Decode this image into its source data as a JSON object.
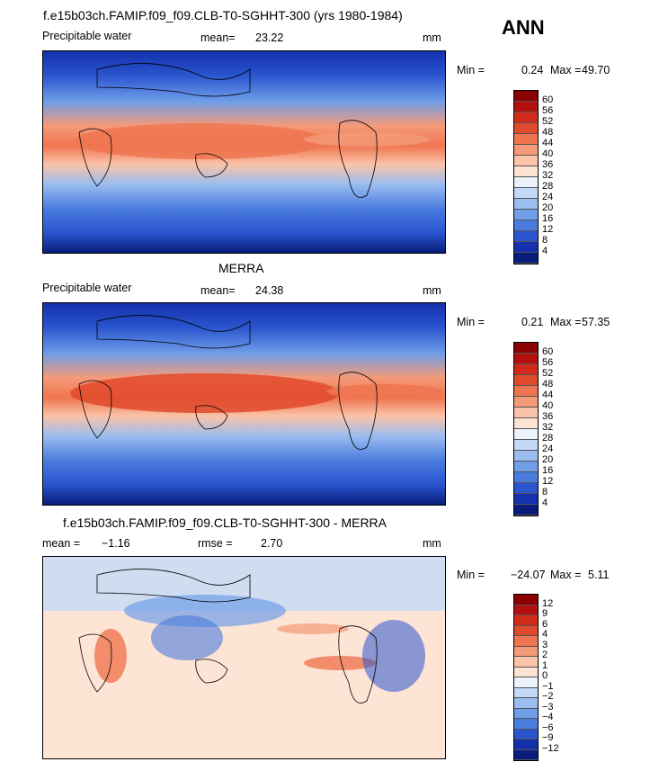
{
  "season": "ANN",
  "panels": [
    {
      "title": "f.e15b03ch.FAMIP.f09_f09.CLB-T0-SGHHT-300 (yrs 1980-1984)",
      "left_label": "Precipitable water",
      "stat_label": "mean=",
      "stat_value": "23.22",
      "units": "mm",
      "min_label": "Min =",
      "min_value": "0.24",
      "max_label": "Max =",
      "max_value": "49.70",
      "colorbar_ticks": [
        "60",
        "56",
        "52",
        "48",
        "44",
        "40",
        "36",
        "32",
        "28",
        "24",
        "20",
        "16",
        "12",
        "8",
        "4"
      ]
    },
    {
      "title": "MERRA",
      "left_label": "Precipitable water",
      "stat_label": "mean=",
      "stat_value": "24.38",
      "units": "mm",
      "min_label": "Min =",
      "min_value": "0.21",
      "max_label": "Max =",
      "max_value": "57.35",
      "colorbar_ticks": [
        "60",
        "56",
        "52",
        "48",
        "44",
        "40",
        "36",
        "32",
        "28",
        "24",
        "20",
        "16",
        "12",
        "8",
        "4"
      ]
    },
    {
      "title": "f.e15b03ch.FAMIP.f09_f09.CLB-T0-SGHHT-300 - MERRA",
      "left_label": "mean =",
      "stat_value_left": "−1.16",
      "stat_label": "rmse =",
      "stat_value": "2.70",
      "units": "mm",
      "min_label": "Min =",
      "min_value": "−24.07",
      "max_label": "Max =",
      "max_value": "5.11",
      "colorbar_ticks": [
        "12",
        "9",
        "6",
        "4",
        "3",
        "2",
        "1",
        "0",
        "−1",
        "−2",
        "−3",
        "−4",
        "−6",
        "−9",
        "−12"
      ]
    }
  ],
  "colorbar_colors": [
    "#8b0000",
    "#b3100d",
    "#d02a1a",
    "#e04a2c",
    "#ef7550",
    "#f59a78",
    "#fbc3a8",
    "#fde4d4",
    "#ebf2fb",
    "#c4d9f5",
    "#9bbdf0",
    "#709ee8",
    "#4a7cde",
    "#2a55cf",
    "#1530ad",
    "#081d7a"
  ],
  "diff_colorbar_colors": [
    "#8b0000",
    "#b3100d",
    "#d02a1a",
    "#e04a2c",
    "#ef7550",
    "#f59a78",
    "#fbc3a8",
    "#fde4d4",
    "#ebf2fb",
    "#c4d9f5",
    "#9bbdf0",
    "#709ee8",
    "#4a7cde",
    "#2a55cf",
    "#1530ad",
    "#081d7a"
  ]
}
